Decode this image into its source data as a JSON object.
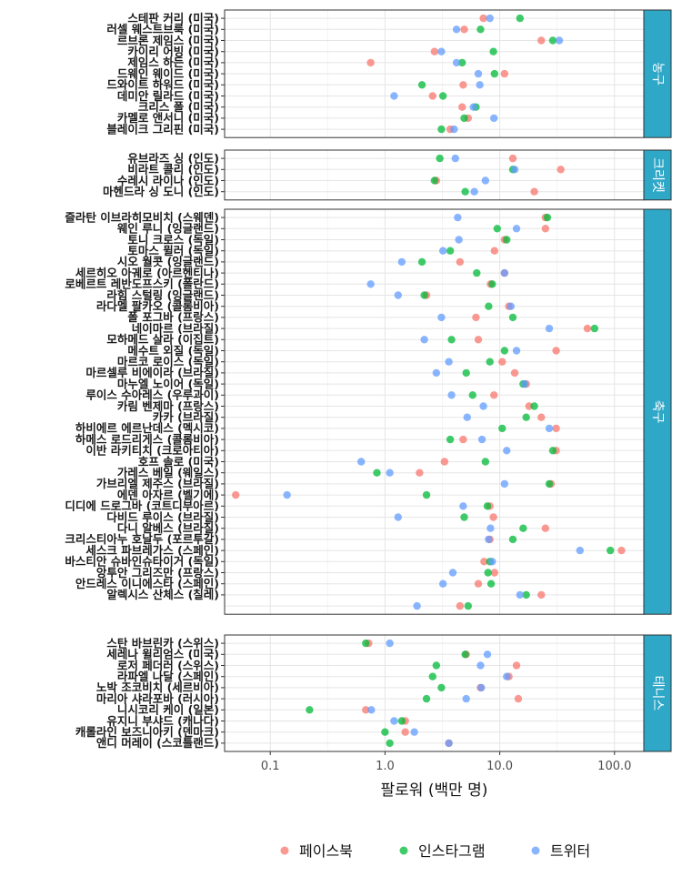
{
  "chart_data": {
    "type": "scatter",
    "xlabel": "팔로워 (백만 명)",
    "x_scale": "log",
    "xlim": [
      0.04,
      180
    ],
    "x_ticks": [
      0.1,
      1.0,
      10.0,
      100.0
    ],
    "x_tick_labels": [
      "0.1",
      "1.0",
      "10.0",
      "100.0"
    ],
    "legend_position": "bottom",
    "grid": true,
    "series": [
      {
        "name": "페이스북",
        "color": "#F8766D"
      },
      {
        "name": "인스타그램",
        "color": "#00BA38"
      },
      {
        "name": "트위터",
        "color": "#619CFF"
      }
    ],
    "panels": [
      {
        "label": "농구",
        "rows": [
          {
            "name": "스테판 커리 (미국)",
            "values": [
              7.2,
              15.0,
              8.2
            ]
          },
          {
            "name": "러셀 웨스트브룩 (미국)",
            "values": [
              4.9,
              6.8,
              4.2
            ]
          },
          {
            "name": "르브론 제임스 (미국)",
            "values": [
              23.0,
              29.0,
              33.0
            ]
          },
          {
            "name": "카이리 어빙 (미국)",
            "values": [
              2.7,
              8.8,
              3.1
            ]
          },
          {
            "name": "제임스 하든 (미국)",
            "values": [
              0.75,
              4.7,
              4.2
            ]
          },
          {
            "name": "드웨인 웨이드 (미국)",
            "values": [
              11.0,
              9.0,
              6.5
            ]
          },
          {
            "name": "드와이트 하워드 (미국)",
            "values": [
              4.8,
              2.1,
              6.7
            ]
          },
          {
            "name": "데미안 릴라드 (미국)",
            "values": [
              2.6,
              3.2,
              1.2
            ]
          },
          {
            "name": "크리스 폴 (미국)",
            "values": [
              4.7,
              6.2,
              5.9
            ]
          },
          {
            "name": "카멜로 앤서니 (미국)",
            "values": [
              5.3,
              4.9,
              8.9
            ]
          },
          {
            "name": "블레이크 그리핀 (미국)",
            "values": [
              3.7,
              3.1,
              4.0
            ]
          }
        ]
      },
      {
        "label": "크리켓",
        "rows": [
          {
            "name": "유브라즈 싱 (인도)",
            "values": [
              13.0,
              3.0,
              4.1
            ]
          },
          {
            "name": "비라트 콜리 (인도)",
            "values": [
              34.0,
              13.0,
              13.5
            ]
          },
          {
            "name": "수레시 라이나 (인도)",
            "values": [
              2.8,
              2.7,
              7.5
            ]
          },
          {
            "name": "마헨드라 싱 도니 (인도)",
            "values": [
              20.0,
              5.0,
              6.0
            ]
          }
        ]
      },
      {
        "label": "축구",
        "rows": [
          {
            "name": "즐라탄 이브라히모비치 (스웨덴)",
            "values": [
              25.0,
              26.0,
              4.3
            ]
          },
          {
            "name": "웨인 루니 (잉글랜드)",
            "values": [
              25.0,
              9.5,
              14.0
            ]
          },
          {
            "name": "토니 크로스 (독일)",
            "values": [
              11.0,
              11.5,
              4.4
            ]
          },
          {
            "name": "토마스 뮐러 (독일)",
            "values": [
              9.0,
              3.7,
              3.2
            ]
          },
          {
            "name": "시오 월콧 (잉글랜드)",
            "values": [
              4.5,
              2.1,
              1.4
            ]
          },
          {
            "name": "세르히오 아궤로 (아르헨티나)",
            "values": [
              11.0,
              6.3,
              11.0
            ]
          },
          {
            "name": "로베르트 레반도프스키 (폴란드)",
            "values": [
              8.3,
              8.6,
              0.75
            ]
          },
          {
            "name": "라힘 스털링 (잉글랜드)",
            "values": [
              2.3,
              2.2,
              1.3
            ]
          },
          {
            "name": "라다멜 팔카오 (콜롬비아)",
            "values": [
              12.0,
              8.0,
              12.5
            ]
          },
          {
            "name": "폴 포그바 (프랑스)",
            "values": [
              6.2,
              13.0,
              3.1
            ]
          },
          {
            "name": "네이마르 (브라질)",
            "values": [
              58.0,
              67.0,
              27.0
            ]
          },
          {
            "name": "모하메드 살라 (이집트)",
            "values": [
              6.5,
              3.8,
              2.2
            ]
          },
          {
            "name": "메수트 외질 (독일)",
            "values": [
              31.0,
              11.0,
              14.0
            ]
          },
          {
            "name": "마르코 로이스 (독일)",
            "values": [
              10.5,
              8.2,
              3.6
            ]
          },
          {
            "name": "마르셀루 비에이라 (브라질)",
            "values": [
              13.5,
              5.1,
              2.8
            ]
          },
          {
            "name": "마누엘 노이어 (독일)",
            "values": [
              17.0,
              16.0,
              16.5
            ]
          },
          {
            "name": "루이스 수아레스 (우루과이)",
            "values": [
              8.9,
              5.8,
              3.8
            ]
          },
          {
            "name": "카림 벤제마 (프랑스)",
            "values": [
              18.0,
              20.0,
              7.2
            ]
          },
          {
            "name": "카카 (브라질)",
            "values": [
              23.0,
              17.0,
              5.2
            ]
          },
          {
            "name": "하비에르 에르난데스 (멕시코)",
            "values": [
              31.0,
              10.5,
              27.0
            ]
          },
          {
            "name": "하메스 로드리게스 (콜롬비아)",
            "values": [
              4.8,
              3.7,
              7.0
            ]
          },
          {
            "name": "이반 라키티치 (크로아티아)",
            "values": [
              31.0,
              29.0,
              11.5
            ]
          },
          {
            "name": "호프 솔로 (미국)",
            "values": [
              3.3,
              7.5,
              0.62
            ]
          },
          {
            "name": "가레스 베일 (웨일스)",
            "values": [
              2.0,
              0.85,
              1.1
            ]
          },
          {
            "name": "가브리엘 제주스 (브라질)",
            "values": [
              28.0,
              27.0,
              11.0
            ]
          },
          {
            "name": "에덴 아자르 (벨기에)",
            "values": [
              0.05,
              2.3,
              0.14
            ]
          },
          {
            "name": "디디에 드로그바 (코트디부아르)",
            "values": [
              8.2,
              7.8,
              4.8
            ]
          },
          {
            "name": "다비드 루이스 (브라질)",
            "values": [
              8.8,
              4.9,
              1.3
            ]
          },
          {
            "name": "다니 알베스 (브라질)",
            "values": [
              25.0,
              16.0,
              8.3
            ]
          },
          {
            "name": "크리스티아누 호날두 (포르투갈)",
            "values": [
              8.2,
              13.0,
              8.0
            ]
          },
          {
            "name": "세스크 파브레가스 (스페인)",
            "values": [
              115.0,
              92.0,
              50.0
            ]
          },
          {
            "name": "바스티안 슈바인슈타이거 (독일)",
            "values": [
              7.3,
              8.2,
              8.6
            ]
          },
          {
            "name": "앙투안 그리즈만 (프랑스)",
            "values": [
              9.0,
              7.9,
              3.9
            ]
          },
          {
            "name": "안드레스 이니에스타 (스페인)",
            "values": [
              6.5,
              8.4,
              3.2
            ]
          },
          {
            "name": "알렉시스 산체스 (칠레)",
            "values": [
              23.0,
              17.0,
              15.0
            ]
          },
          {
            "name": "",
            "values": [
              4.5,
              5.3,
              1.9
            ]
          }
        ]
      },
      {
        "label": "테니스",
        "rows": [
          {
            "name": "스탄 바브린카 (스위스)",
            "values": [
              0.72,
              0.68,
              1.1
            ]
          },
          {
            "name": "세레나 윌리엄스 (미국)",
            "values": [
              5.1,
              5.0,
              7.8
            ]
          },
          {
            "name": "로저 페더러 (스위스)",
            "values": [
              14.0,
              2.8,
              6.8
            ]
          },
          {
            "name": "라파엘 나달 (스페인)",
            "values": [
              12.0,
              2.6,
              11.5
            ]
          },
          {
            "name": "노박 조코비치 (세르비아)",
            "values": [
              6.8,
              3.1,
              6.9
            ]
          },
          {
            "name": "마리아 샤라포바 (러시아)",
            "values": [
              14.5,
              2.3,
              5.1
            ]
          },
          {
            "name": "니시코리 케이 (일본)",
            "values": [
              0.68,
              0.22,
              0.76
            ]
          },
          {
            "name": "유지니 부샤드 (캐나다)",
            "values": [
              1.5,
              1.4,
              1.2
            ]
          },
          {
            "name": "캐롤라인 보즈니아키 (덴마크)",
            "values": [
              1.5,
              1.0,
              1.8
            ]
          },
          {
            "name": "앤디 머레이 (스코틀랜드)",
            "values": [
              3.6,
              1.1,
              3.6
            ]
          }
        ]
      }
    ]
  }
}
